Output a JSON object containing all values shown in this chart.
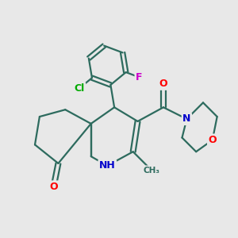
{
  "background_color": "#e8e8e8",
  "bond_color": "#2d6b5e",
  "bond_width": 1.6,
  "atom_colors": {
    "O": "#ff0000",
    "N": "#0000cc",
    "Cl": "#00aa00",
    "F": "#cc00cc",
    "C": "#2d6b5e",
    "H": "#2d6b5e"
  },
  "font_size": 9
}
